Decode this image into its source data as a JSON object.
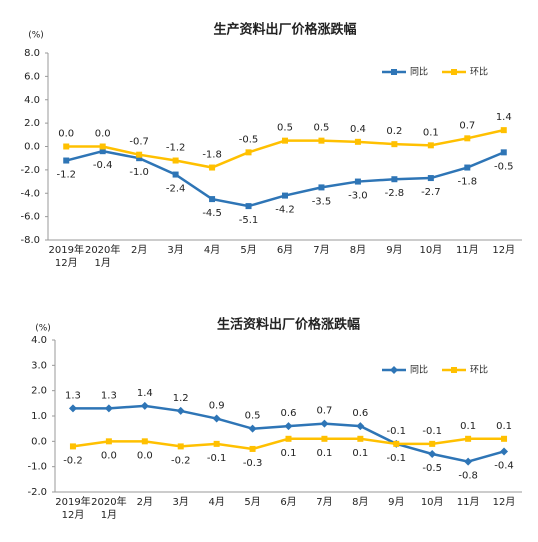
{
  "chart_data": [
    {
      "type": "line",
      "title": "生产资料出厂价格涨跌幅",
      "y_label": "(%)",
      "categories": [
        "2019年\n12月",
        "2020年\n1月",
        "2月",
        "3月",
        "4月",
        "5月",
        "6月",
        "7月",
        "8月",
        "9月",
        "10月",
        "11月",
        "12月"
      ],
      "series": [
        {
          "name": "同比",
          "color": "#2e75b6",
          "marker": "square",
          "values": [
            -1.2,
            -0.4,
            -1.0,
            -2.4,
            -4.5,
            -5.1,
            -4.2,
            -3.5,
            -3.0,
            -2.8,
            -2.7,
            -1.8,
            -0.5
          ],
          "value_labels": [
            "-1.2",
            "-0.4",
            "-1.0",
            "-2.4",
            "-4.5",
            "-5.1",
            "-4.2",
            "-3.5",
            "-3.0",
            "-2.8",
            "-2.7",
            "-1.8",
            "-0.5"
          ]
        },
        {
          "name": "环比",
          "color": "#ffc000",
          "marker": "square",
          "values": [
            0.0,
            0.0,
            -0.7,
            -1.2,
            -1.8,
            -0.5,
            0.5,
            0.5,
            0.4,
            0.2,
            0.1,
            0.7,
            1.4
          ],
          "value_labels": [
            "0.0",
            "0.0",
            "-0.7",
            "-1.2",
            "-1.8",
            "-0.5",
            "0.5",
            "0.5",
            "0.4",
            "0.2",
            "0.1",
            "0.7",
            "1.4"
          ]
        }
      ],
      "ylim": [
        -8,
        8
      ],
      "yticks": [
        {
          "value": -8,
          "label": "-8.0"
        },
        {
          "value": -6,
          "label": "-6.0"
        },
        {
          "value": -4,
          "label": "-4.0"
        },
        {
          "value": -2,
          "label": "-2.0"
        },
        {
          "value": 0,
          "label": "0.0"
        },
        {
          "value": 2,
          "label": "2.0"
        },
        {
          "value": 4,
          "label": "4.0"
        },
        {
          "value": 6,
          "label": "6.0"
        },
        {
          "value": 8,
          "label": "8.0"
        }
      ],
      "legend": "upper right"
    },
    {
      "type": "line",
      "title": "生活资料出厂价格涨跌幅",
      "y_label": "(%)",
      "categories": [
        "2019年\n12月",
        "2020年\n1月",
        "2月",
        "3月",
        "4月",
        "5月",
        "6月",
        "7月",
        "8月",
        "9月",
        "10月",
        "11月",
        "12月"
      ],
      "series": [
        {
          "name": "同比",
          "color": "#2e75b6",
          "marker": "diamond",
          "values": [
            1.3,
            1.3,
            1.4,
            1.2,
            0.9,
            0.5,
            0.6,
            0.7,
            0.6,
            -0.1,
            -0.5,
            -0.8,
            -0.4
          ],
          "value_labels": [
            "1.3",
            "1.3",
            "1.4",
            "1.2",
            "0.9",
            "0.5",
            "0.6",
            "0.7",
            "0.6",
            "-0.1",
            "-0.5",
            "-0.8",
            "-0.4"
          ]
        },
        {
          "name": "环比",
          "color": "#ffc000",
          "marker": "square",
          "values": [
            -0.2,
            0.0,
            0.0,
            -0.2,
            -0.1,
            -0.3,
            0.1,
            0.1,
            0.1,
            -0.1,
            -0.1,
            0.1,
            0.1
          ],
          "value_labels": [
            "-0.2",
            "0.0",
            "0.0",
            "-0.2",
            "-0.1",
            "-0.3",
            "0.1",
            "0.1",
            "0.1",
            "-0.1",
            "-0.1",
            "0.1",
            "0.1"
          ]
        }
      ],
      "ylim": [
        -2,
        4
      ],
      "yticks": [
        {
          "value": -2,
          "label": "-2.0"
        },
        {
          "value": -1,
          "label": "-1.0"
        },
        {
          "value": 0,
          "label": "0.0"
        },
        {
          "value": 1,
          "label": "1.0"
        },
        {
          "value": 2,
          "label": "2.0"
        },
        {
          "value": 3,
          "label": "3.0"
        },
        {
          "value": 4,
          "label": "4.0"
        }
      ],
      "legend": "upper right"
    }
  ]
}
